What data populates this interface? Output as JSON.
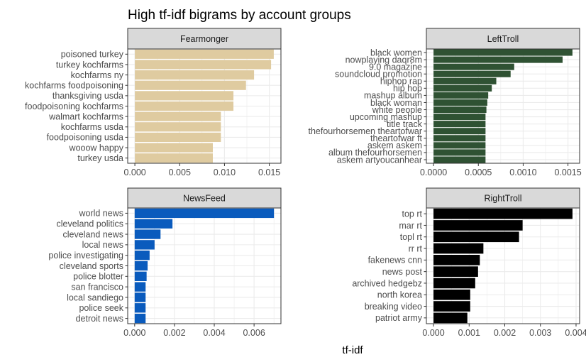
{
  "title": "High tf-idf bigrams by account groups",
  "xlabel": "tf-idf",
  "colors": {
    "Fearmonger": "#dfcba0",
    "LeftTroll": "#2f5233",
    "NewsFeed": "#0a5bbd",
    "RightTroll": "#000000",
    "strip_fill": "#d9d9d9",
    "grid": "#ebebeb",
    "panel_border": "#333333",
    "tick_text": "#4d4d4d"
  },
  "chart_data": [
    {
      "type": "bar",
      "orientation": "horizontal",
      "panel": "Fearmonger",
      "categories": [
        "poisoned turkey",
        "turkey kochfarms",
        "kochfarms ny",
        "kochfarms foodpoisoning",
        "thanksgiving usda",
        "foodpoisoning kochfarms",
        "walmart kochfarms",
        "kochfarms usda",
        "foodpoisoning usda",
        "wooow happy",
        "turkey usda"
      ],
      "values": [
        0.0155,
        0.0152,
        0.0133,
        0.0124,
        0.011,
        0.011,
        0.0096,
        0.0096,
        0.0096,
        0.0087,
        0.0087
      ],
      "xlim": [
        -0.0008,
        0.0163
      ],
      "xticks": [
        0.0,
        0.005,
        0.01,
        0.015
      ],
      "xtick_labels": [
        "0.000",
        "0.005",
        "0.010",
        "0.015"
      ]
    },
    {
      "type": "bar",
      "orientation": "horizontal",
      "panel": "LeftTroll",
      "categories": [
        "black women",
        "nowplaying daqr8m",
        "9.0 magazine",
        "soundcloud promotion",
        "hiphop rap",
        "hip hop",
        "mashup album",
        "black woman",
        "white people",
        "upcoming mashup",
        "title track",
        "thefourhorsemen theartofwar",
        "theartofwar ft",
        "askem askem",
        "album thefourhorsemen",
        "askem artyoucanhear"
      ],
      "values": [
        0.00155,
        0.00144,
        0.0009,
        0.00086,
        0.0007,
        0.00065,
        0.00061,
        0.0006,
        0.00059,
        0.00058,
        0.00058,
        0.00058,
        0.00058,
        0.00058,
        0.00058,
        0.00058
      ],
      "xlim": [
        -8e-05,
        0.00163
      ],
      "xticks": [
        0.0,
        0.0005,
        0.001,
        0.0015
      ],
      "xtick_labels": [
        "0.0000",
        "0.0005",
        "0.0010",
        "0.0015"
      ]
    },
    {
      "type": "bar",
      "orientation": "horizontal",
      "panel": "NewsFeed",
      "categories": [
        "world news",
        "cleveland politics",
        "cleveland news",
        "local news",
        "police investigating",
        "cleveland sports",
        "police blotter",
        "san francisco",
        "local sandiego",
        "police seek",
        "detroit news"
      ],
      "values": [
        0.007,
        0.0019,
        0.0013,
        0.001,
        0.00075,
        0.00065,
        0.0006,
        0.00055,
        0.00055,
        0.00055,
        0.00055
      ],
      "xlim": [
        -0.00035,
        0.00735
      ],
      "xticks": [
        0.0,
        0.002,
        0.004,
        0.006
      ],
      "xtick_labels": [
        "0.000",
        "0.002",
        "0.004",
        "0.006"
      ]
    },
    {
      "type": "bar",
      "orientation": "horizontal",
      "panel": "RightTroll",
      "categories": [
        "top rt",
        "mar rt",
        "topl rt",
        "rr rt",
        "fakenews cnn",
        "news post",
        "archived hedgebz",
        "north korea",
        "breaking video",
        "patriot army"
      ],
      "values": [
        0.0039,
        0.0025,
        0.0024,
        0.0014,
        0.0013,
        0.00125,
        0.00117,
        0.00103,
        0.00103,
        0.00095
      ],
      "xlim": [
        -0.0002,
        0.0041
      ],
      "xticks": [
        0.0,
        0.001,
        0.002,
        0.003,
        0.004
      ],
      "xtick_labels": [
        "0.000",
        "0.001",
        "0.002",
        "0.003",
        "0.004"
      ]
    }
  ]
}
